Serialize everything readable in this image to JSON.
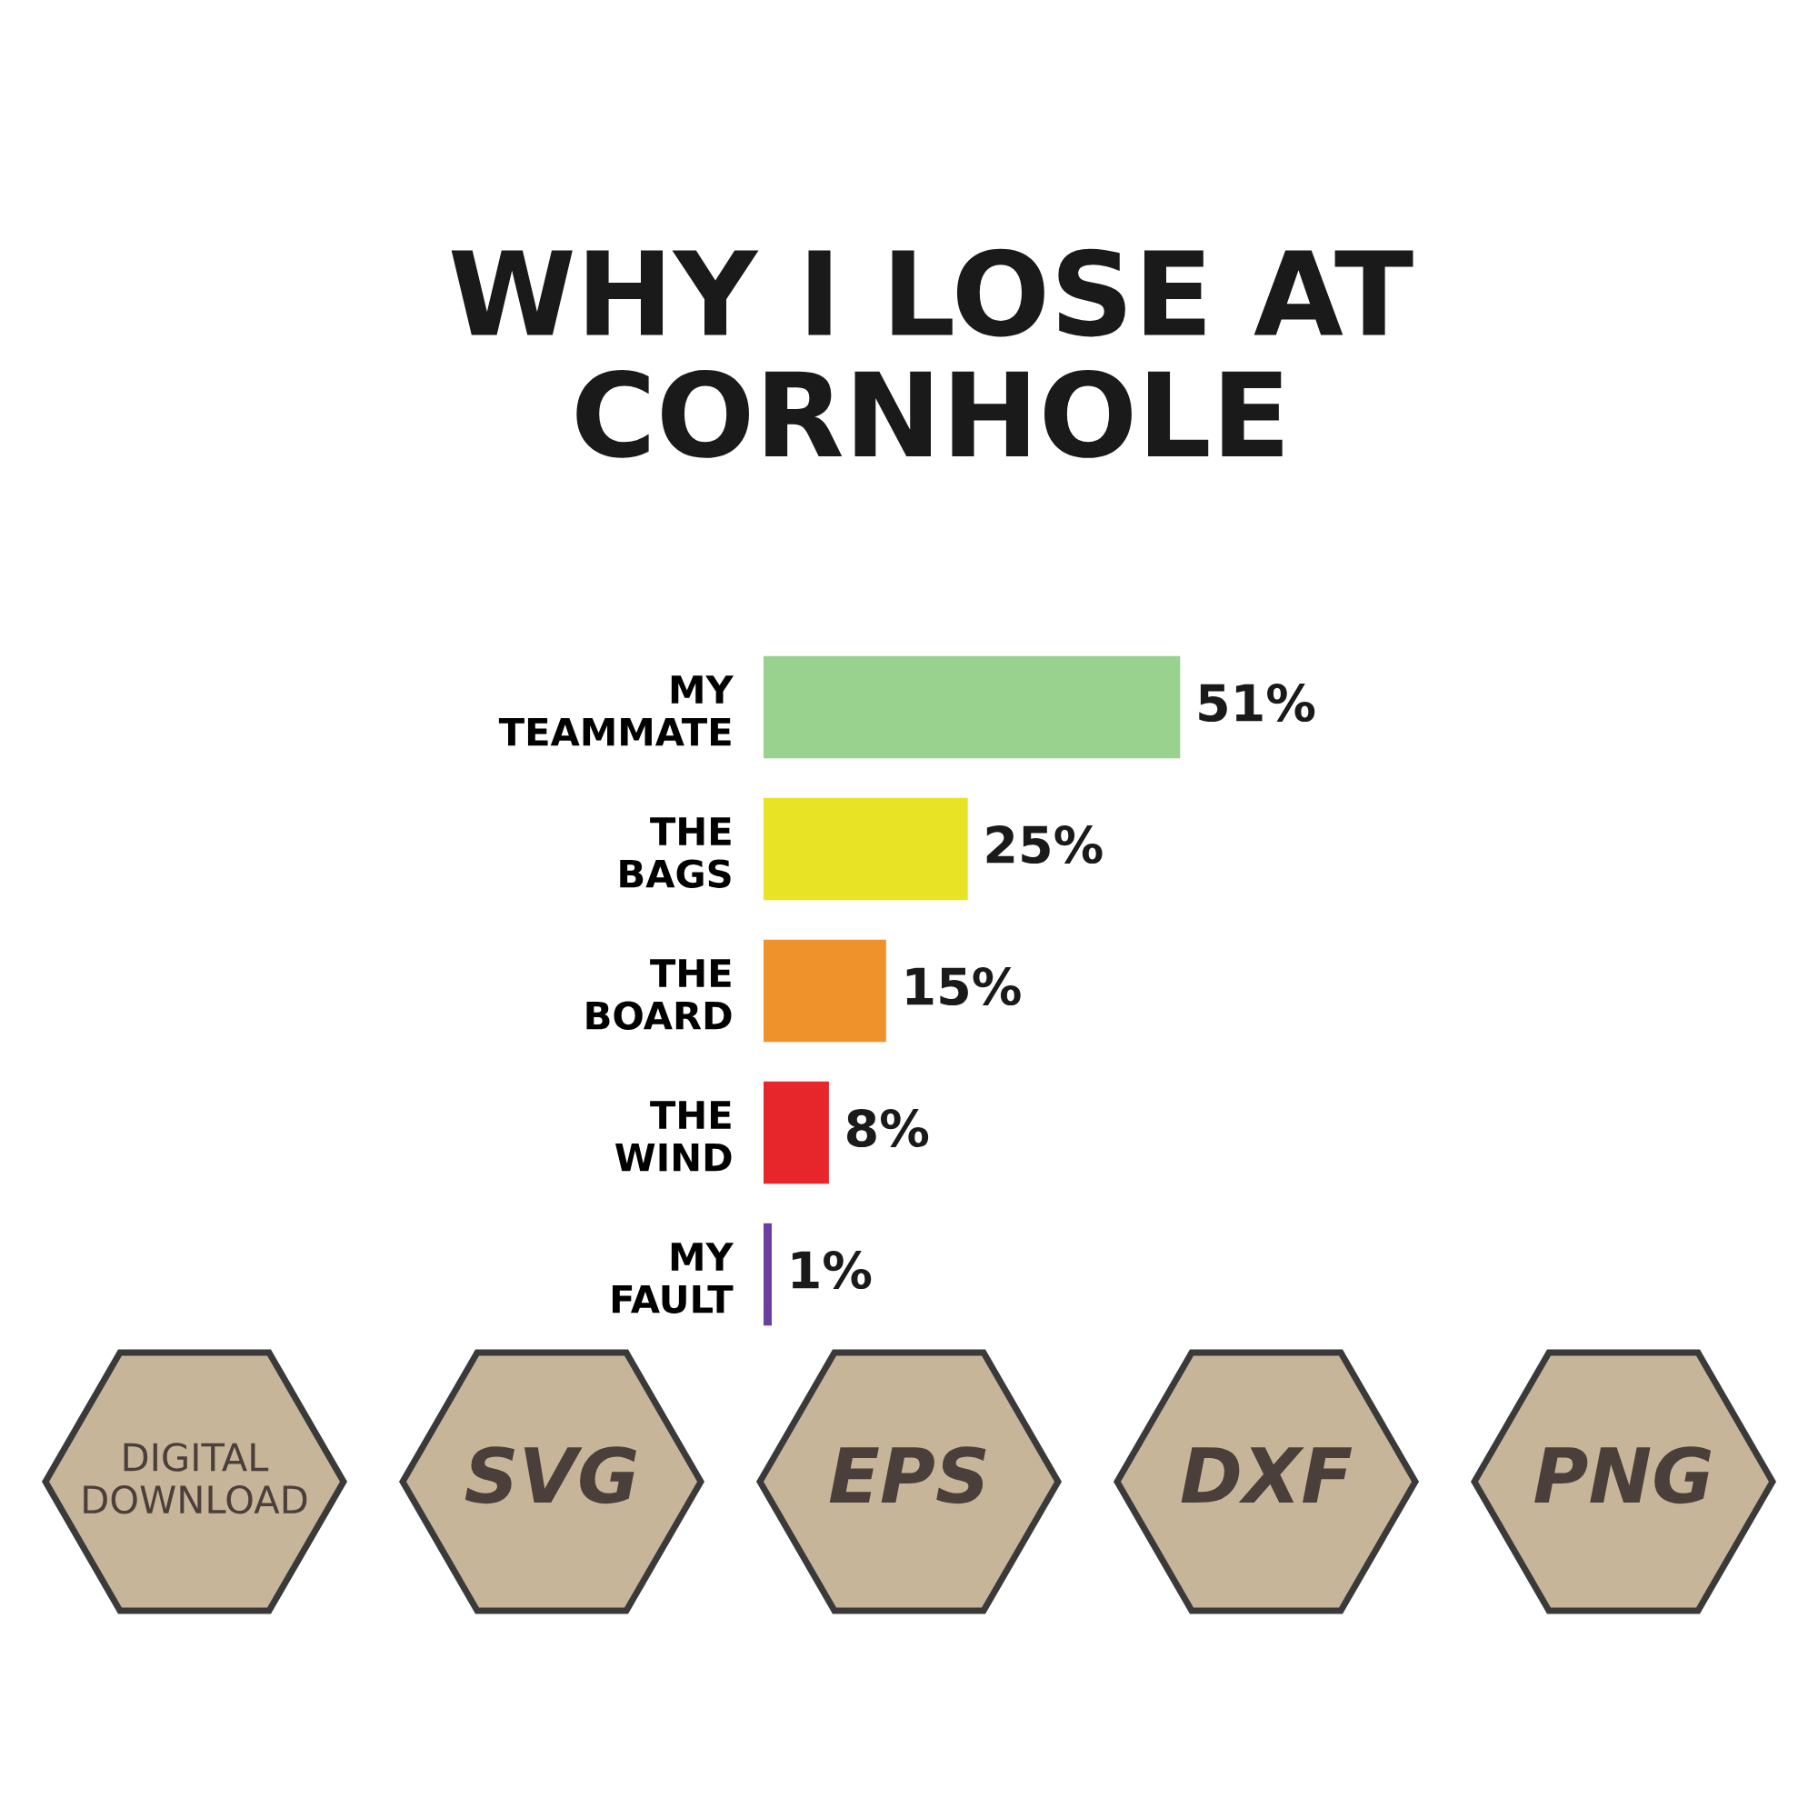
{
  "chart_data": {
    "type": "bar",
    "orientation": "horizontal",
    "title": "WHY I LOSE AT\nCORNHOLE",
    "categories": [
      "MY\nTEAMMATE",
      "THE\nBAGS",
      "THE\nBOARD",
      "THE\nWIND",
      "MY\nFAULT"
    ],
    "values": [
      51,
      25,
      15,
      8,
      1
    ],
    "colors": [
      "#99d18f",
      "#e8e324",
      "#f0922c",
      "#e6262b",
      "#6b3fa0"
    ],
    "value_labels": [
      "51%",
      "25%",
      "15%",
      "8%",
      "1%"
    ],
    "annotations": [
      "DIGITAL\nDOWNLOAD",
      "SVG",
      "EPS",
      "DXF",
      "PNG"
    ],
    "grid": false,
    "legend": false
  }
}
